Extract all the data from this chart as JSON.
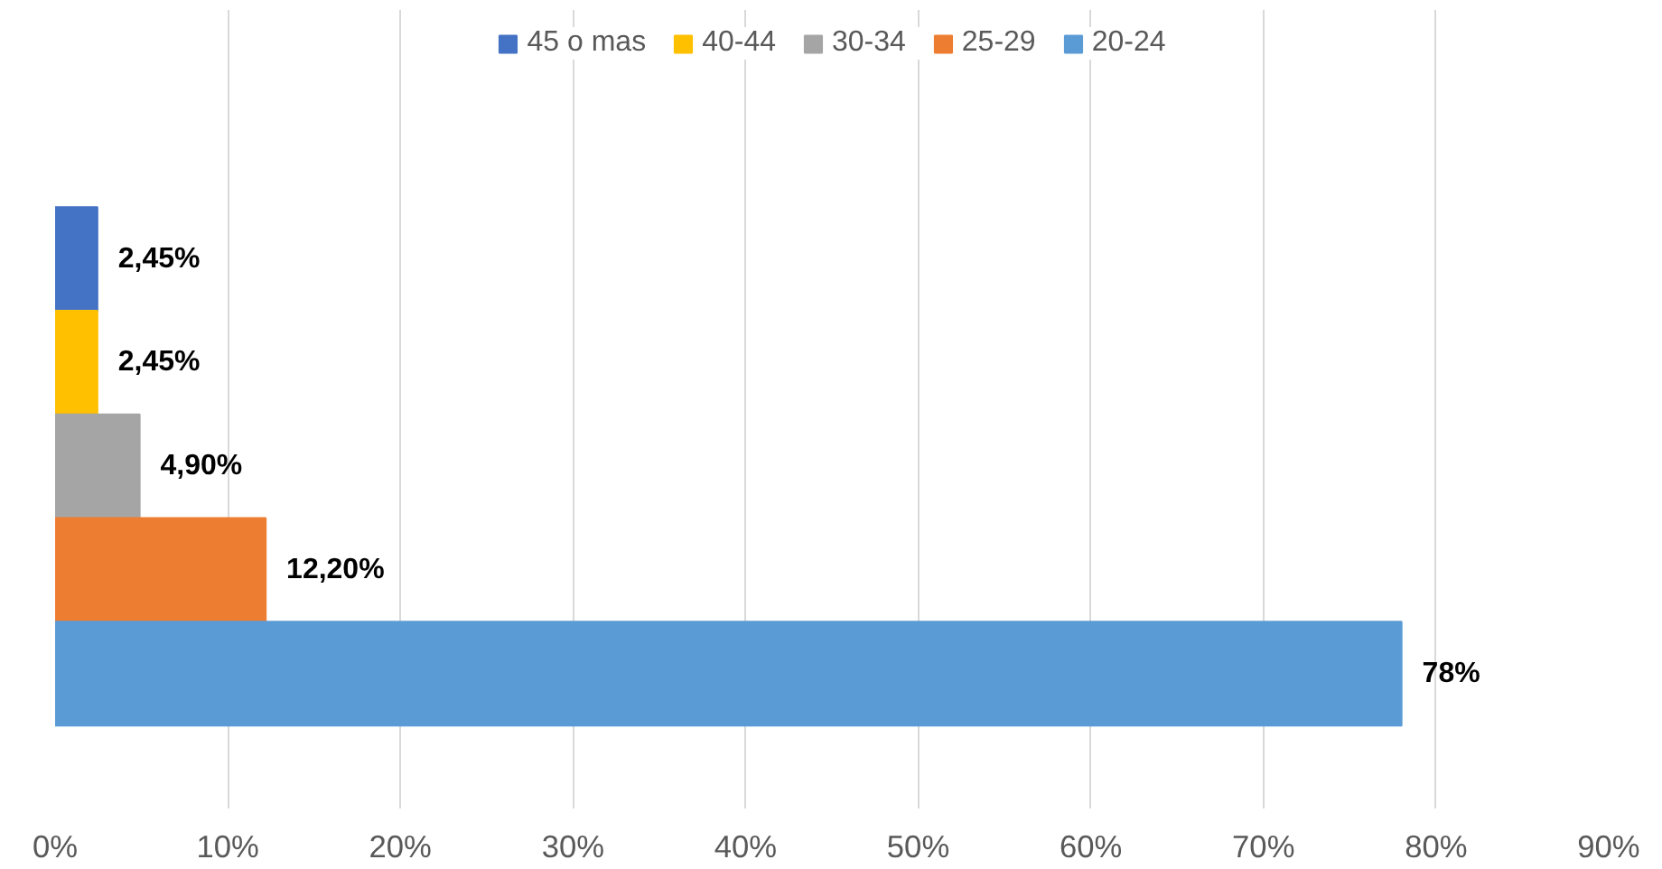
{
  "chart_data": {
    "type": "bar",
    "orientation": "horizontal",
    "categories": [
      null
    ],
    "series": [
      {
        "name": "45 o mas",
        "color": "#4472c4",
        "values": [
          2.45
        ],
        "value_labels": [
          "2,45%"
        ]
      },
      {
        "name": "40-44",
        "color": "#ffc000",
        "values": [
          2.45
        ],
        "value_labels": [
          "2,45%"
        ]
      },
      {
        "name": "30-34",
        "color": "#a5a5a5",
        "values": [
          4.9
        ],
        "value_labels": [
          "4,90%"
        ]
      },
      {
        "name": "25-29",
        "color": "#ed7d31",
        "values": [
          12.2
        ],
        "value_labels": [
          "12,20%"
        ]
      },
      {
        "name": "20-24",
        "color": "#5b9bd5",
        "values": [
          78
        ],
        "value_labels": [
          "78%"
        ]
      }
    ],
    "xlim": [
      0,
      90
    ],
    "xticks": [
      {
        "value": 0,
        "label": "0%"
      },
      {
        "value": 10,
        "label": "10%"
      },
      {
        "value": 20,
        "label": "20%"
      },
      {
        "value": 30,
        "label": "30%"
      },
      {
        "value": 40,
        "label": "40%"
      },
      {
        "value": 50,
        "label": "50%"
      },
      {
        "value": 60,
        "label": "60%"
      },
      {
        "value": 70,
        "label": "70%"
      },
      {
        "value": 80,
        "label": "80%"
      },
      {
        "value": 90,
        "label": "90%"
      }
    ],
    "grid": "x",
    "legend": "top"
  }
}
